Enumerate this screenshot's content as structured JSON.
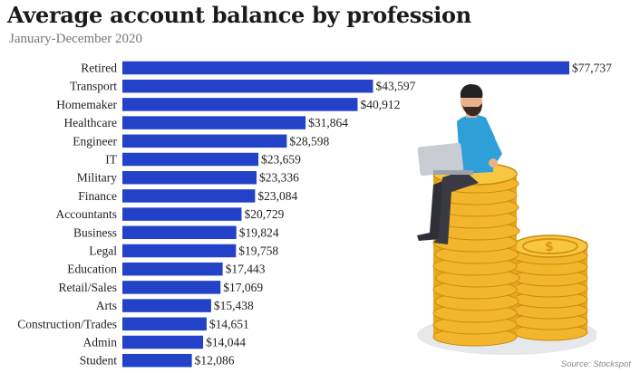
{
  "header": {
    "title": "Average account balance by profession",
    "subtitle": "January-December 2020"
  },
  "source": "Source: Stockspot",
  "colors": {
    "bar": "#2342c8",
    "coin": "#f4b82a",
    "coin_dark": "#d99413"
  },
  "icons": [
    "person-with-laptop-icon",
    "coin-stack-icon"
  ],
  "chart_data": {
    "type": "bar",
    "orientation": "horizontal",
    "categories": [
      "Retired",
      "Transport",
      "Homemaker",
      "Healthcare",
      "Engineer",
      "IT",
      "Military",
      "Finance",
      "Accountants",
      "Business",
      "Legal",
      "Education",
      "Retail/Sales",
      "Arts",
      "Construction/Trades",
      "Admin",
      "Student"
    ],
    "values": [
      77737,
      43597,
      40912,
      31864,
      28598,
      23659,
      23336,
      23084,
      20729,
      19824,
      19758,
      17443,
      17069,
      15438,
      14651,
      14044,
      12086
    ],
    "labels": [
      "$77,737",
      "$43,597",
      "$40,912",
      "$31,864",
      "$28,598",
      "$23,659",
      "$23,336",
      "$23,084",
      "$20,729",
      "$19,824",
      "$19,758",
      "$17,443",
      "$17,069",
      "$15,438",
      "$14,651",
      "$14,044",
      "$12,086"
    ],
    "xlim": [
      0,
      77737
    ],
    "grid": false,
    "legend": "none"
  }
}
